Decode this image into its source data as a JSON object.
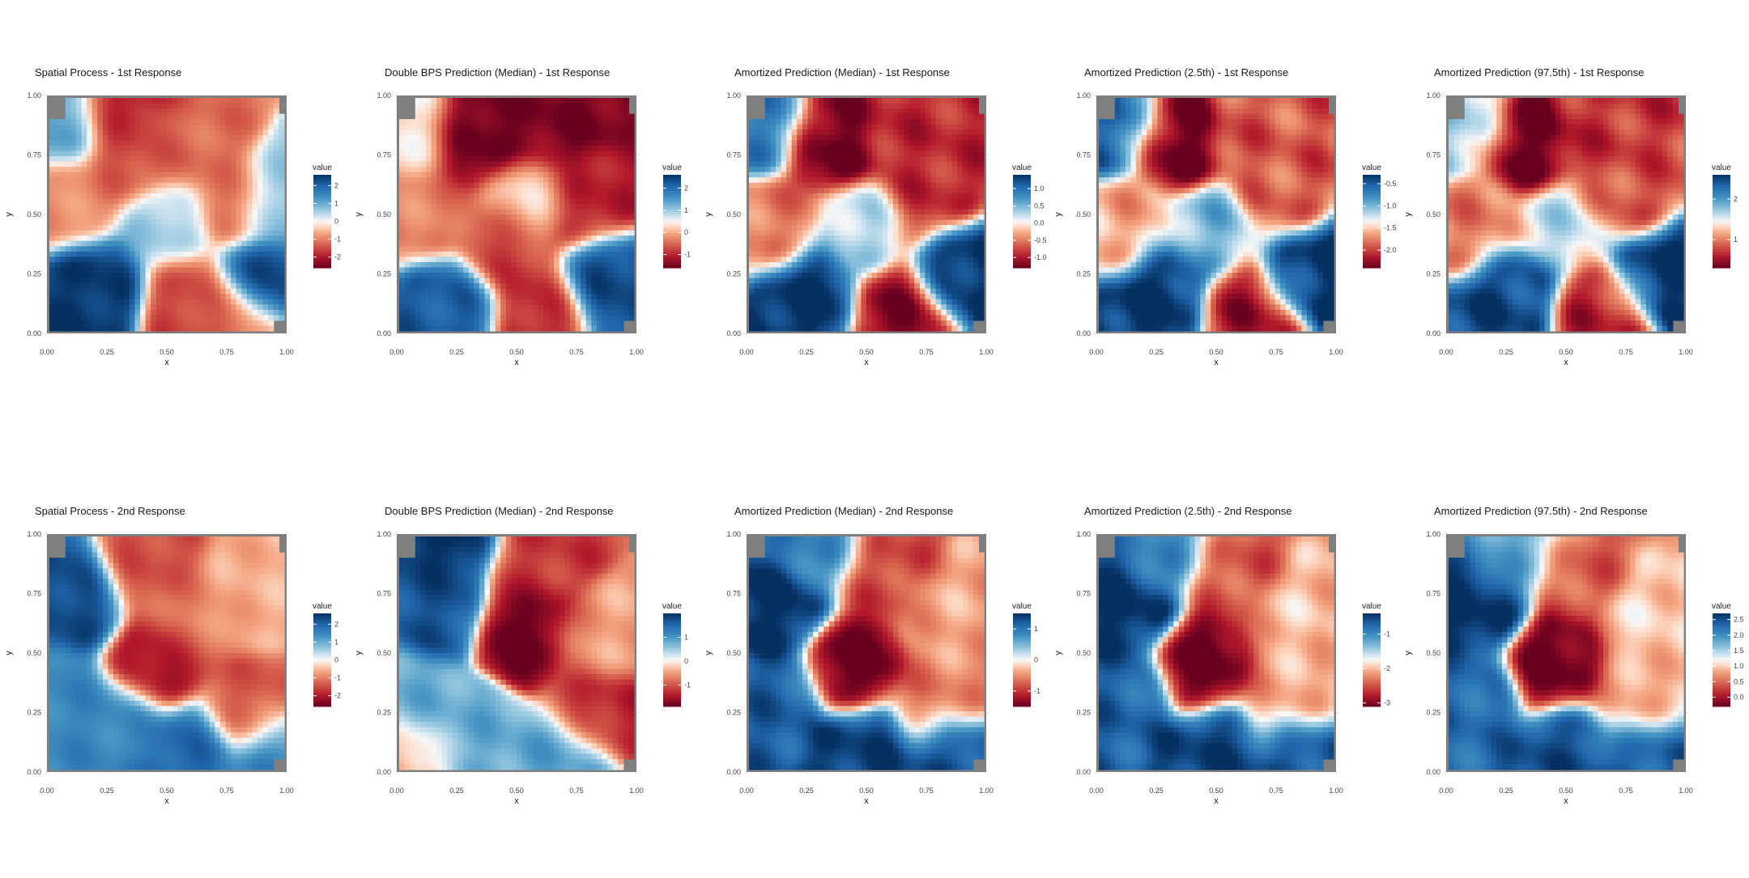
{
  "figure": {
    "colors": {
      "low": "#67001f",
      "mid": "#f7f7f7",
      "high": "#053061",
      "frame": "#7f7f7f",
      "grid": "#ececec"
    },
    "scale_description": "RdBu diverging palette, red = low, blue = high"
  },
  "chart_data": [
    {
      "type": "heatmap",
      "title": "Spatial Process - 1st Response",
      "xlabel": "x",
      "ylabel": "y",
      "xlim": [
        0,
        1
      ],
      "ylim": [
        0,
        1
      ],
      "x_ticks": [
        "0.00",
        "0.25",
        "0.50",
        "0.75",
        "1.00"
      ],
      "y_ticks": [
        "0.00",
        "0.25",
        "0.50",
        "0.75",
        "1.00"
      ],
      "legend": {
        "title": "value",
        "ticks": [
          2,
          1,
          0,
          -1,
          -2
        ],
        "range": [
          -2.6,
          2.6
        ]
      },
      "value_range": [
        -2.6,
        2.6
      ],
      "field": [
        {
          "x": 0.05,
          "y": 0.9,
          "value": 1.2
        },
        {
          "x": 0.3,
          "y": 0.97,
          "value": -2.0
        },
        {
          "x": 0.35,
          "y": 0.75,
          "value": -1.5
        },
        {
          "x": 0.62,
          "y": 0.8,
          "value": -1.2
        },
        {
          "x": 0.8,
          "y": 0.55,
          "value": -1.3
        },
        {
          "x": 0.97,
          "y": 0.55,
          "value": 1.0
        },
        {
          "x": 0.5,
          "y": 0.45,
          "value": 0.6
        },
        {
          "x": 0.2,
          "y": 0.2,
          "value": 2.5
        },
        {
          "x": 0.1,
          "y": 0.55,
          "value": -0.9
        },
        {
          "x": 0.6,
          "y": 0.15,
          "value": -1.6
        },
        {
          "x": 0.9,
          "y": 0.22,
          "value": 2.5
        },
        {
          "x": 0.78,
          "y": 0.05,
          "value": -1.4
        }
      ]
    },
    {
      "type": "heatmap",
      "title": "Double BPS Prediction (Median) - 1st Response",
      "xlabel": "x",
      "ylabel": "y",
      "xlim": [
        0,
        1
      ],
      "ylim": [
        0,
        1
      ],
      "x_ticks": [
        "0.00",
        "0.25",
        "0.50",
        "0.75",
        "1.00"
      ],
      "y_ticks": [
        "0.00",
        "0.25",
        "0.50",
        "0.75",
        "1.00"
      ],
      "legend": {
        "title": "value",
        "ticks": [
          2,
          1,
          0,
          -1
        ],
        "range": [
          -1.6,
          2.6
        ]
      },
      "value_range": [
        -1.6,
        2.6
      ],
      "field": [
        {
          "x": 0.32,
          "y": 0.82,
          "value": -1.6
        },
        {
          "x": 0.65,
          "y": 0.88,
          "value": -1.5
        },
        {
          "x": 0.05,
          "y": 0.85,
          "value": 0.4
        },
        {
          "x": 0.8,
          "y": 0.55,
          "value": -1.1
        },
        {
          "x": 0.55,
          "y": 0.55,
          "value": 0.3
        },
        {
          "x": 0.45,
          "y": 0.35,
          "value": -0.9
        },
        {
          "x": 0.22,
          "y": 0.12,
          "value": 2.2
        },
        {
          "x": 0.88,
          "y": 0.22,
          "value": 2.4
        },
        {
          "x": 0.6,
          "y": 0.1,
          "value": -1.0
        },
        {
          "x": 0.1,
          "y": 0.5,
          "value": -0.3
        }
      ]
    },
    {
      "type": "heatmap",
      "title": "Amortized Prediction (Median) - 1st Response",
      "xlabel": "x",
      "ylabel": "y",
      "xlim": [
        0,
        1
      ],
      "ylim": [
        0,
        1
      ],
      "x_ticks": [
        "0.00",
        "0.25",
        "0.50",
        "0.75",
        "1.00"
      ],
      "y_ticks": [
        "0.00",
        "0.25",
        "0.50",
        "0.75",
        "1.00"
      ],
      "legend": {
        "title": "value",
        "ticks": [
          1.0,
          0.5,
          0.0,
          -0.5,
          -1.0
        ],
        "range": [
          -1.3,
          1.4
        ]
      },
      "value_range": [
        -1.3,
        1.4
      ],
      "field": [
        {
          "x": 0.35,
          "y": 0.8,
          "value": -1.3
        },
        {
          "x": 0.65,
          "y": 0.85,
          "value": -0.9
        },
        {
          "x": 0.05,
          "y": 0.88,
          "value": 0.9
        },
        {
          "x": 0.75,
          "y": 0.58,
          "value": -0.9
        },
        {
          "x": 0.5,
          "y": 0.45,
          "value": 0.3
        },
        {
          "x": 0.25,
          "y": 0.15,
          "value": 1.4
        },
        {
          "x": 0.9,
          "y": 0.25,
          "value": 1.4
        },
        {
          "x": 0.65,
          "y": 0.08,
          "value": -1.2
        },
        {
          "x": 0.1,
          "y": 0.45,
          "value": -0.5
        }
      ]
    },
    {
      "type": "heatmap",
      "title": "Amortized Prediction (2.5th) - 1st Response",
      "xlabel": "x",
      "ylabel": "y",
      "xlim": [
        0,
        1
      ],
      "ylim": [
        0,
        1
      ],
      "x_ticks": [
        "0.00",
        "0.25",
        "0.50",
        "0.75",
        "1.00"
      ],
      "y_ticks": [
        "0.00",
        "0.25",
        "0.50",
        "0.75",
        "1.00"
      ],
      "legend": {
        "title": "value",
        "ticks": [
          -0.5,
          -1.0,
          -1.5,
          -2.0
        ],
        "range": [
          -2.4,
          -0.3
        ]
      },
      "value_range": [
        -2.4,
        -0.3
      ],
      "field": [
        {
          "x": 0.35,
          "y": 0.8,
          "value": -2.4
        },
        {
          "x": 0.65,
          "y": 0.85,
          "value": -1.9
        },
        {
          "x": 0.05,
          "y": 0.88,
          "value": -0.6
        },
        {
          "x": 0.75,
          "y": 0.58,
          "value": -1.9
        },
        {
          "x": 0.5,
          "y": 0.45,
          "value": -1.0
        },
        {
          "x": 0.25,
          "y": 0.15,
          "value": -0.3
        },
        {
          "x": 0.9,
          "y": 0.25,
          "value": -0.3
        },
        {
          "x": 0.65,
          "y": 0.08,
          "value": -2.2
        },
        {
          "x": 0.1,
          "y": 0.45,
          "value": -1.6
        }
      ]
    },
    {
      "type": "heatmap",
      "title": "Amortized Prediction (97.5th) - 1st Response",
      "xlabel": "x",
      "ylabel": "y",
      "xlim": [
        0,
        1
      ],
      "ylim": [
        0,
        1
      ],
      "x_ticks": [
        "0.00",
        "0.25",
        "0.50",
        "0.75",
        "1.00"
      ],
      "y_ticks": [
        "0.00",
        "0.25",
        "0.50",
        "0.75",
        "1.00"
      ],
      "legend": {
        "title": "value",
        "ticks": [
          2,
          1
        ],
        "range": [
          0.3,
          2.6
        ]
      },
      "value_range": [
        0.3,
        2.6
      ],
      "field": [
        {
          "x": 0.35,
          "y": 0.8,
          "value": 0.3
        },
        {
          "x": 0.65,
          "y": 0.85,
          "value": 0.7
        },
        {
          "x": 0.05,
          "y": 0.88,
          "value": 1.7
        },
        {
          "x": 0.75,
          "y": 0.58,
          "value": 0.8
        },
        {
          "x": 0.5,
          "y": 0.45,
          "value": 1.6
        },
        {
          "x": 0.25,
          "y": 0.15,
          "value": 2.5
        },
        {
          "x": 0.9,
          "y": 0.25,
          "value": 2.6
        },
        {
          "x": 0.65,
          "y": 0.08,
          "value": 0.6
        },
        {
          "x": 0.1,
          "y": 0.45,
          "value": 1.0
        }
      ]
    },
    {
      "type": "heatmap",
      "title": "Spatial Process - 2nd Response",
      "xlabel": "x",
      "ylabel": "y",
      "xlim": [
        0,
        1
      ],
      "ylim": [
        0,
        1
      ],
      "x_ticks": [
        "0.00",
        "0.25",
        "0.50",
        "0.75",
        "1.00"
      ],
      "y_ticks": [
        "0.00",
        "0.25",
        "0.50",
        "0.75",
        "1.00"
      ],
      "legend": {
        "title": "value",
        "ticks": [
          2,
          1,
          0,
          -1,
          -2
        ],
        "range": [
          -2.6,
          2.6
        ]
      },
      "value_range": [
        -2.6,
        2.6
      ],
      "field": [
        {
          "x": 0.12,
          "y": 0.72,
          "value": 2.3
        },
        {
          "x": 0.05,
          "y": 0.3,
          "value": 1.5
        },
        {
          "x": 0.45,
          "y": 0.45,
          "value": -2.2
        },
        {
          "x": 0.42,
          "y": 0.85,
          "value": -1.5
        },
        {
          "x": 0.6,
          "y": 0.65,
          "value": -1.0
        },
        {
          "x": 0.85,
          "y": 0.75,
          "value": -0.6
        },
        {
          "x": 0.85,
          "y": 0.25,
          "value": -1.4
        },
        {
          "x": 0.3,
          "y": 0.2,
          "value": 1.5
        },
        {
          "x": 0.6,
          "y": 0.08,
          "value": 2.0
        },
        {
          "x": 0.95,
          "y": 0.05,
          "value": 1.6
        }
      ]
    },
    {
      "type": "heatmap",
      "title": "Double BPS Prediction (Median) - 2nd Response",
      "xlabel": "x",
      "ylabel": "y",
      "xlim": [
        0,
        1
      ],
      "ylim": [
        0,
        1
      ],
      "x_ticks": [
        "0.00",
        "0.25",
        "0.50",
        "0.75",
        "1.00"
      ],
      "y_ticks": [
        "0.00",
        "0.25",
        "0.50",
        "0.75",
        "1.00"
      ],
      "legend": {
        "title": "value",
        "ticks": [
          1,
          0,
          -1
        ],
        "range": [
          -1.9,
          2.0
        ]
      },
      "value_range": [
        -1.9,
        2.0
      ],
      "field": [
        {
          "x": 0.22,
          "y": 0.98,
          "value": 2.0
        },
        {
          "x": 0.15,
          "y": 0.7,
          "value": 1.7
        },
        {
          "x": 0.05,
          "y": 0.3,
          "value": 0.8
        },
        {
          "x": 0.55,
          "y": 0.6,
          "value": -1.9
        },
        {
          "x": 0.58,
          "y": 0.88,
          "value": -1.2
        },
        {
          "x": 0.85,
          "y": 0.55,
          "value": -0.5
        },
        {
          "x": 0.85,
          "y": 0.25,
          "value": -1.4
        },
        {
          "x": 0.3,
          "y": 0.15,
          "value": 0.8
        },
        {
          "x": 0.7,
          "y": 0.05,
          "value": 0.9
        },
        {
          "x": 0.03,
          "y": 0.05,
          "value": -0.4
        }
      ]
    },
    {
      "type": "heatmap",
      "title": "Amortized Prediction (Median) - 2nd Response",
      "xlabel": "x",
      "ylabel": "y",
      "xlim": [
        0,
        1
      ],
      "ylim": [
        0,
        1
      ],
      "x_ticks": [
        "0.00",
        "0.25",
        "0.50",
        "0.75",
        "1.00"
      ],
      "y_ticks": [
        "0.00",
        "0.25",
        "0.50",
        "0.75",
        "1.00"
      ],
      "legend": {
        "title": "value",
        "ticks": [
          1,
          0,
          -1
        ],
        "range": [
          -1.5,
          1.5
        ]
      },
      "value_range": [
        -1.5,
        1.5
      ],
      "field": [
        {
          "x": 0.12,
          "y": 0.7,
          "value": 1.5
        },
        {
          "x": 0.1,
          "y": 0.3,
          "value": 1.2
        },
        {
          "x": 0.45,
          "y": 0.45,
          "value": -1.5
        },
        {
          "x": 0.55,
          "y": 0.85,
          "value": -0.9
        },
        {
          "x": 0.85,
          "y": 0.65,
          "value": -0.4
        },
        {
          "x": 0.8,
          "y": 0.3,
          "value": -0.6
        },
        {
          "x": 0.5,
          "y": 0.08,
          "value": 1.4
        },
        {
          "x": 0.85,
          "y": 0.05,
          "value": 1.3
        },
        {
          "x": 0.3,
          "y": 0.95,
          "value": 0.9
        }
      ]
    },
    {
      "type": "heatmap",
      "title": "Amortized Prediction (2.5th) - 2nd Response",
      "xlabel": "x",
      "ylabel": "y",
      "xlim": [
        0,
        1
      ],
      "ylim": [
        0,
        1
      ],
      "x_ticks": [
        "0.00",
        "0.25",
        "0.50",
        "0.75",
        "1.00"
      ],
      "y_ticks": [
        "0.00",
        "0.25",
        "0.50",
        "0.75",
        "1.00"
      ],
      "legend": {
        "title": "value",
        "ticks": [
          -1,
          -2,
          -3
        ],
        "range": [
          -3.1,
          -0.4
        ]
      },
      "value_range": [
        -3.1,
        -0.4
      ],
      "field": [
        {
          "x": 0.12,
          "y": 0.7,
          "value": -0.4
        },
        {
          "x": 0.1,
          "y": 0.3,
          "value": -0.7
        },
        {
          "x": 0.45,
          "y": 0.45,
          "value": -3.1
        },
        {
          "x": 0.55,
          "y": 0.85,
          "value": -2.5
        },
        {
          "x": 0.85,
          "y": 0.65,
          "value": -2.0
        },
        {
          "x": 0.8,
          "y": 0.3,
          "value": -2.1
        },
        {
          "x": 0.5,
          "y": 0.08,
          "value": -0.5
        },
        {
          "x": 0.85,
          "y": 0.05,
          "value": -0.6
        },
        {
          "x": 0.3,
          "y": 0.95,
          "value": -1.0
        }
      ]
    },
    {
      "type": "heatmap",
      "title": "Amortized Prediction (97.5th) - 2nd Response",
      "xlabel": "x",
      "ylabel": "y",
      "xlim": [
        0,
        1
      ],
      "ylim": [
        0,
        1
      ],
      "x_ticks": [
        "0.00",
        "0.25",
        "0.50",
        "0.75",
        "1.00"
      ],
      "y_ticks": [
        "0.00",
        "0.25",
        "0.50",
        "0.75",
        "1.00"
      ],
      "legend": {
        "title": "value",
        "ticks": [
          2.5,
          2.0,
          1.5,
          1.0,
          0.5,
          0.0
        ],
        "range": [
          -0.3,
          2.7
        ]
      },
      "value_range": [
        -0.3,
        2.7
      ],
      "field": [
        {
          "x": 0.12,
          "y": 0.7,
          "value": 2.7
        },
        {
          "x": 0.1,
          "y": 0.3,
          "value": 2.3
        },
        {
          "x": 0.45,
          "y": 0.45,
          "value": -0.3
        },
        {
          "x": 0.55,
          "y": 0.85,
          "value": 0.4
        },
        {
          "x": 0.85,
          "y": 0.65,
          "value": 1.0
        },
        {
          "x": 0.8,
          "y": 0.3,
          "value": 0.8
        },
        {
          "x": 0.5,
          "y": 0.08,
          "value": 2.5
        },
        {
          "x": 0.85,
          "y": 0.05,
          "value": 2.4
        },
        {
          "x": 0.3,
          "y": 0.95,
          "value": 1.8
        }
      ]
    }
  ]
}
